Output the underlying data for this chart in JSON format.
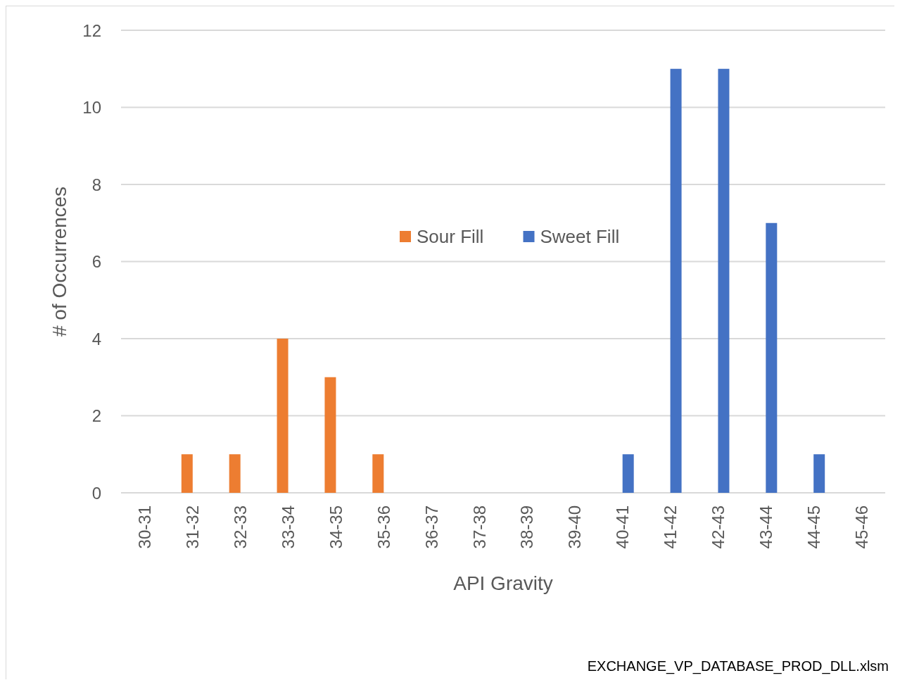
{
  "chart_data": {
    "type": "bar",
    "xlabel": "API Gravity",
    "ylabel": "# of Occurrences",
    "categories": [
      "30-31",
      "31-32",
      "32-33",
      "33-34",
      "34-35",
      "35-36",
      "36-37",
      "37-38",
      "38-39",
      "39-40",
      "40-41",
      "41-42",
      "42-43",
      "43-44",
      "44-45",
      "45-46"
    ],
    "series": [
      {
        "name": "Sour Fill",
        "color": "#ed7d31",
        "values": [
          0,
          1,
          1,
          4,
          3,
          1,
          0,
          0,
          0,
          0,
          0,
          0,
          0,
          0,
          0,
          0
        ]
      },
      {
        "name": "Sweet Fill",
        "color": "#4472c4",
        "values": [
          0,
          0,
          0,
          0,
          0,
          0,
          0,
          0,
          0,
          0,
          1,
          11,
          11,
          7,
          1,
          0
        ]
      }
    ],
    "ylim": [
      0,
      12
    ],
    "yticks": [
      0,
      2,
      4,
      6,
      8,
      10,
      12
    ],
    "grid": "y",
    "legend": "center",
    "annotations": [
      "EXCHANGE_VP_DATABASE_PROD_DLL.xlsm"
    ]
  }
}
